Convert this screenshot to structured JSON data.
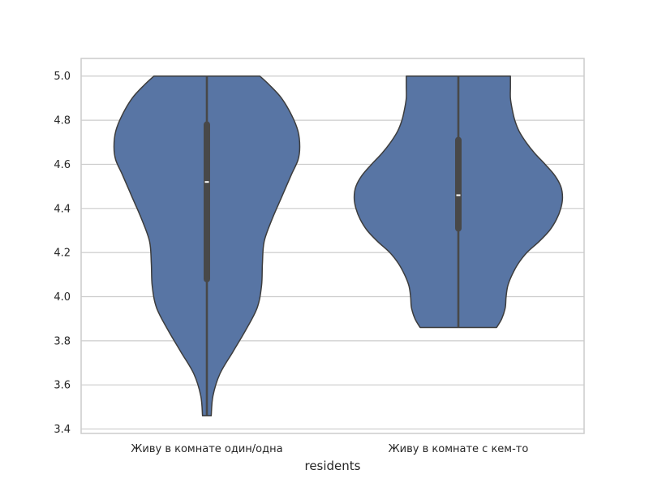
{
  "chart_data": {
    "type": "violin",
    "xlabel": "residents",
    "ylabel": "",
    "ylim": [
      3.38,
      5.08
    ],
    "yticks": [
      "3.4",
      "3.6",
      "3.8",
      "4.0",
      "4.2",
      "4.4",
      "4.6",
      "4.8",
      "5.0"
    ],
    "grid": "horizontal",
    "colors": {
      "violin_fill": "#5875a4",
      "violin_edge": "#3d3d3d",
      "box": "#484848",
      "median": "#ffffff",
      "grid": "#cccccc",
      "frame": "#cccccc"
    },
    "categories": [
      {
        "label": "Живу в комнате один/одна",
        "min": 3.46,
        "q1": 4.08,
        "median": 4.52,
        "q3": 4.78,
        "max": 5.0,
        "density": [
          [
            3.46,
            0.05
          ],
          [
            3.55,
            0.07
          ],
          [
            3.65,
            0.15
          ],
          [
            3.75,
            0.3
          ],
          [
            3.85,
            0.45
          ],
          [
            3.95,
            0.58
          ],
          [
            4.05,
            0.63
          ],
          [
            4.15,
            0.64
          ],
          [
            4.25,
            0.66
          ],
          [
            4.35,
            0.75
          ],
          [
            4.45,
            0.86
          ],
          [
            4.55,
            0.97
          ],
          [
            4.62,
            1.05
          ],
          [
            4.68,
            1.07
          ],
          [
            4.75,
            1.05
          ],
          [
            4.82,
            0.98
          ],
          [
            4.9,
            0.86
          ],
          [
            4.96,
            0.72
          ],
          [
            5.0,
            0.61
          ]
        ]
      },
      {
        "label": "Живу в комнате с кем-то",
        "min": 3.86,
        "q1": 4.31,
        "median": 4.46,
        "q3": 4.71,
        "max": 5.0,
        "density": [
          [
            3.86,
            0.44
          ],
          [
            3.9,
            0.5
          ],
          [
            3.95,
            0.54
          ],
          [
            4.0,
            0.55
          ],
          [
            4.05,
            0.57
          ],
          [
            4.1,
            0.62
          ],
          [
            4.15,
            0.69
          ],
          [
            4.2,
            0.79
          ],
          [
            4.25,
            0.93
          ],
          [
            4.3,
            1.05
          ],
          [
            4.35,
            1.13
          ],
          [
            4.4,
            1.18
          ],
          [
            4.45,
            1.2
          ],
          [
            4.5,
            1.18
          ],
          [
            4.55,
            1.11
          ],
          [
            4.6,
            1.0
          ],
          [
            4.65,
            0.88
          ],
          [
            4.7,
            0.78
          ],
          [
            4.75,
            0.7
          ],
          [
            4.8,
            0.65
          ],
          [
            4.85,
            0.62
          ],
          [
            4.9,
            0.6
          ],
          [
            4.95,
            0.6
          ],
          [
            5.0,
            0.6
          ]
        ]
      }
    ]
  }
}
